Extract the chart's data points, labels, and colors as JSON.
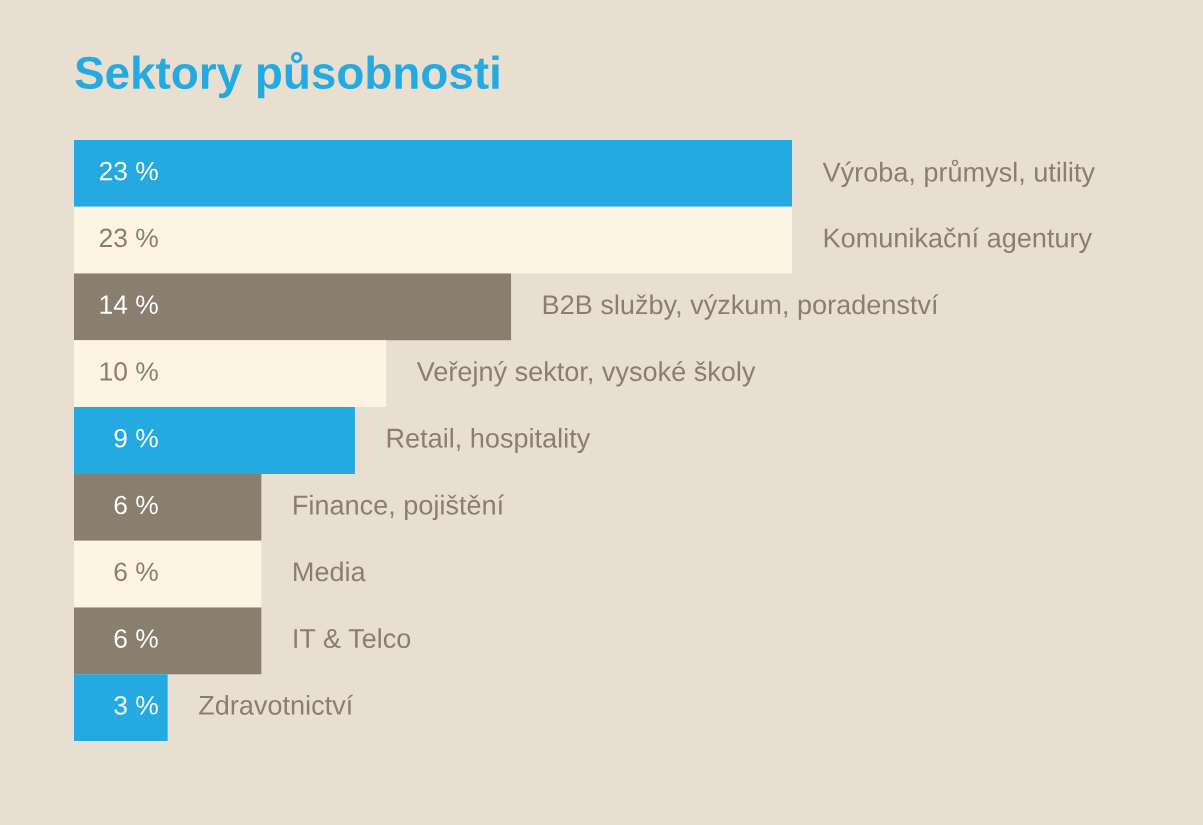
{
  "chart_data": {
    "type": "bar",
    "orientation": "horizontal",
    "title": "Sektory působnosti",
    "categories": [
      "Výroba, průmysl, utility",
      "Komunikační agentury",
      "B2B služby, výzkum, poradenství",
      "Veřejný sektor, vysoké školy",
      "Retail, hospitality",
      "Finance, pojištění",
      "Media",
      "IT & Telco",
      "Zdravotnictví"
    ],
    "values": [
      23,
      23,
      14,
      10,
      9,
      6,
      6,
      6,
      3
    ],
    "value_labels": [
      "23 %",
      "23 %",
      "14 %",
      "10 %",
      "9 %",
      "6 %",
      "6 %",
      "6 %",
      "3 %"
    ],
    "colors": [
      "#25a9e1",
      "#fdf4e4",
      "#8a7e6e",
      "#fdf4e4",
      "#25a9e1",
      "#8a7e6e",
      "#fdf4e4",
      "#8a7e6e",
      "#25a9e1"
    ],
    "data_labels": true
  }
}
